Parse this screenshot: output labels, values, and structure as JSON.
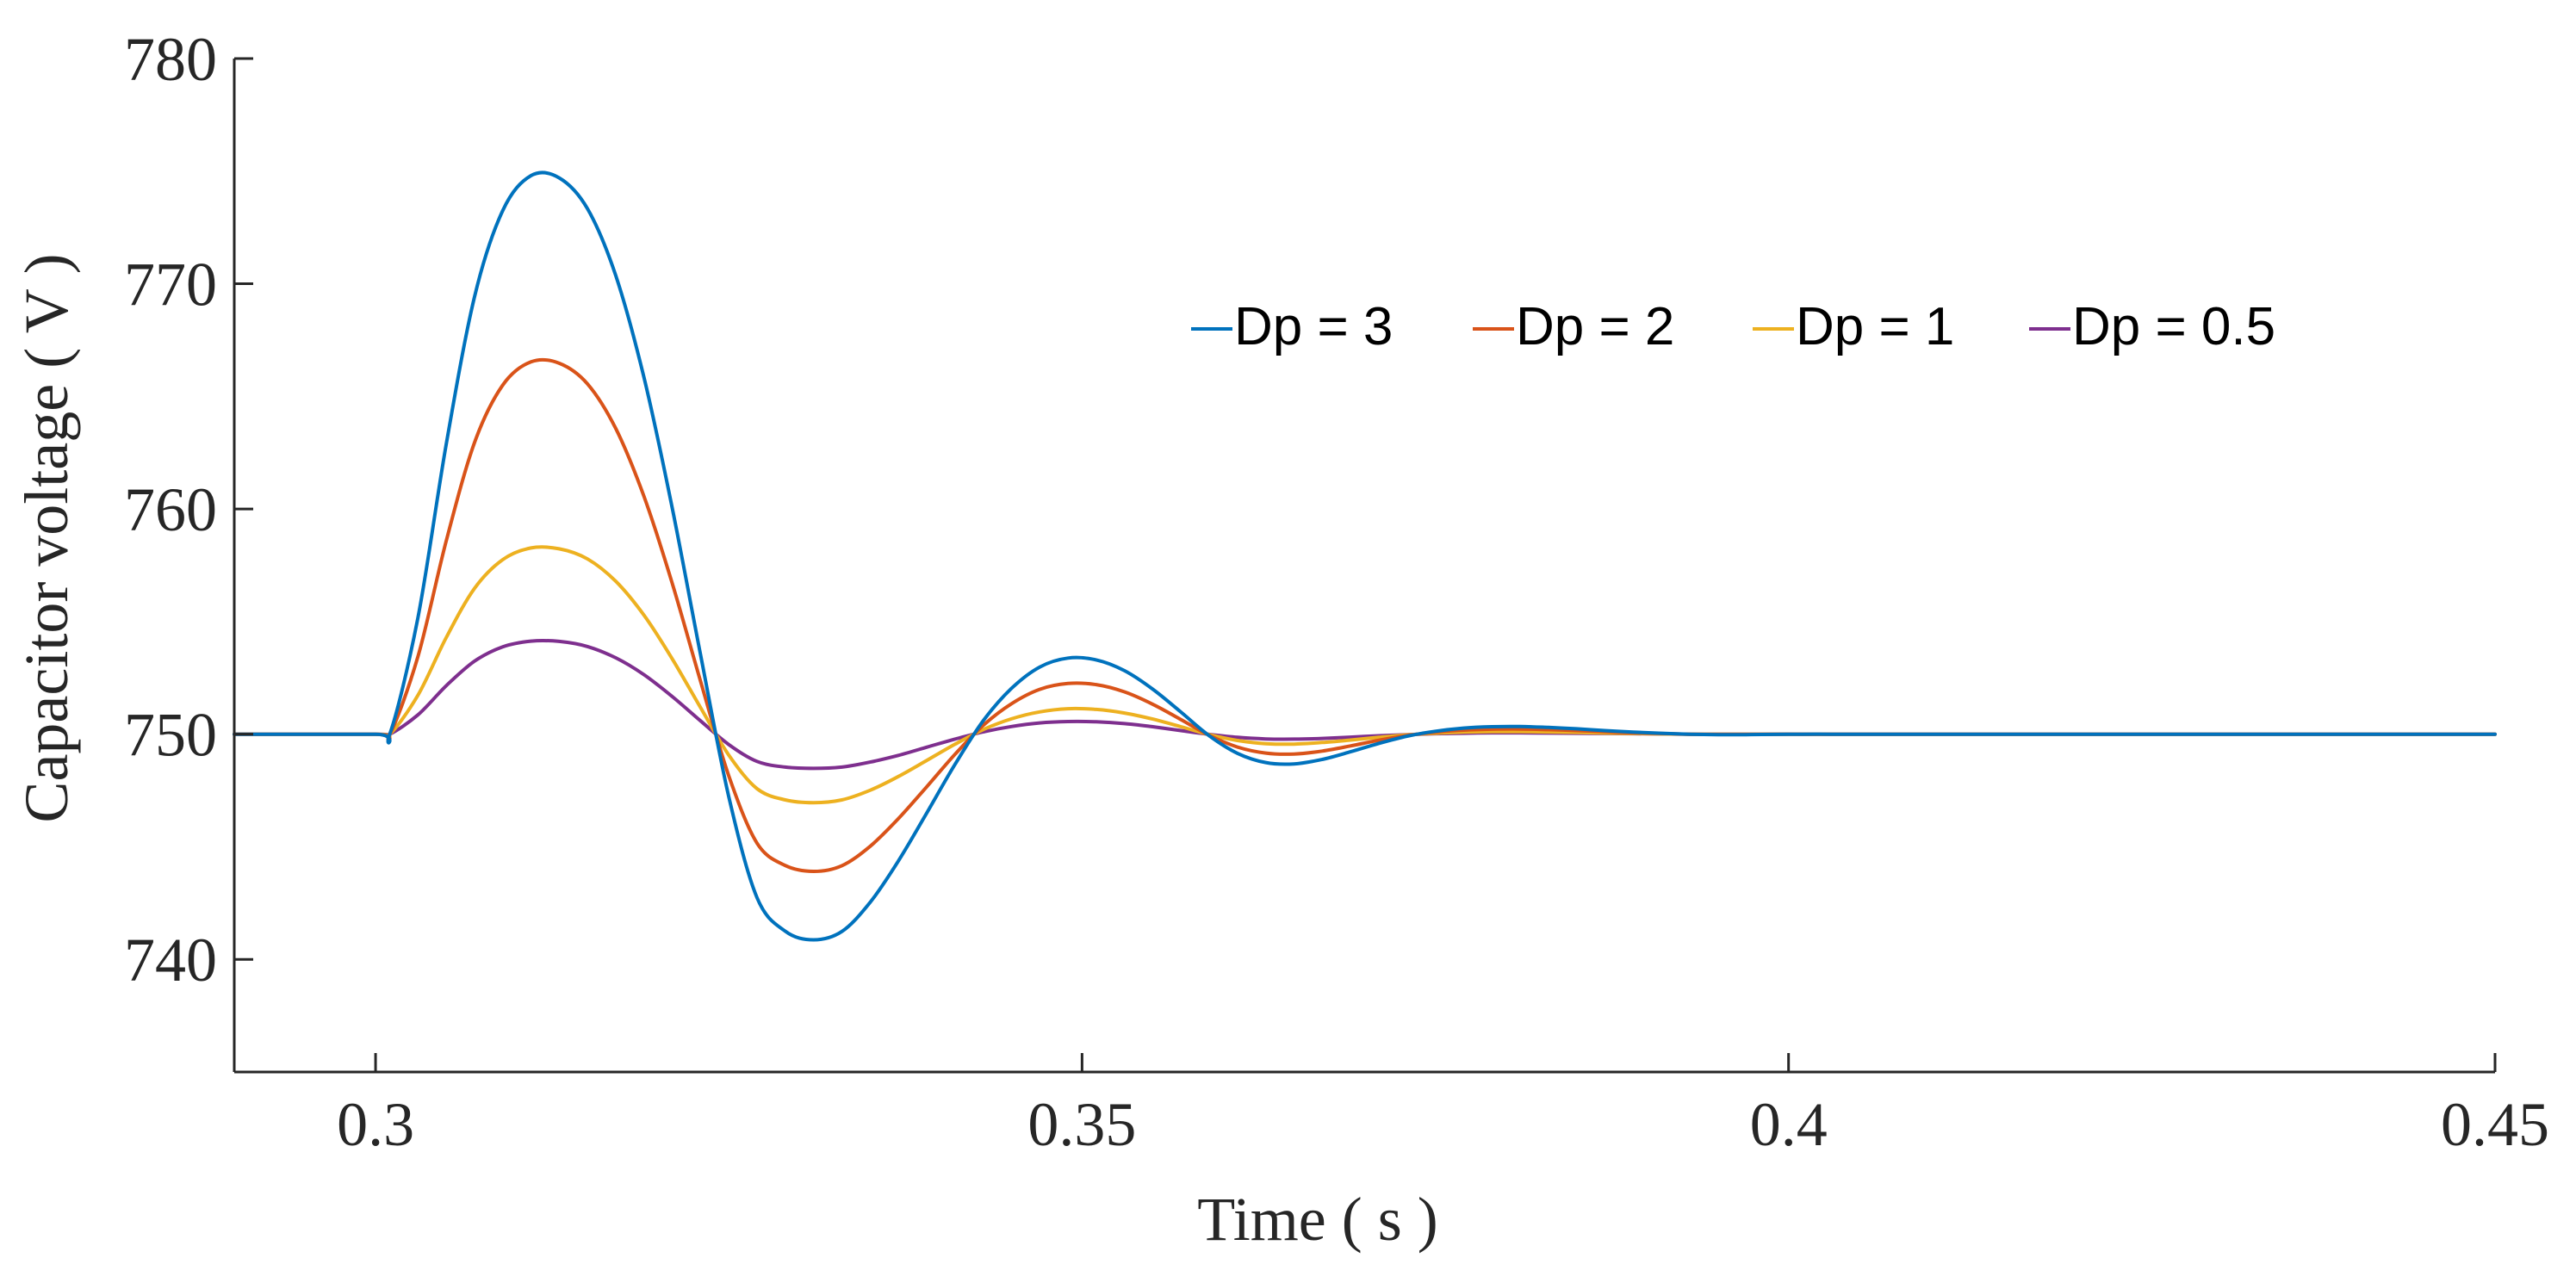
{
  "chart_data": {
    "type": "line",
    "title": "",
    "xlabel": "Time ( s )",
    "ylabel": "Capacitor voltage ( V )",
    "xlim": [
      0.29,
      0.45
    ],
    "ylim": [
      735,
      780
    ],
    "xticks": [
      0.3,
      0.35,
      0.4,
      0.45
    ],
    "xtick_labels": [
      "0.3",
      "0.35",
      "0.4",
      "0.45"
    ],
    "yticks": [
      740,
      750,
      760,
      770,
      780
    ],
    "ytick_labels": [
      "740",
      "750",
      "760",
      "770",
      "780"
    ],
    "grid": false,
    "legend_position": "top-right",
    "x": [
      0.29,
      0.3,
      0.301,
      0.303,
      0.305,
      0.307,
      0.309,
      0.311,
      0.313,
      0.315,
      0.317,
      0.319,
      0.321,
      0.323,
      0.325,
      0.327,
      0.329,
      0.331,
      0.333,
      0.335,
      0.337,
      0.339,
      0.341,
      0.343,
      0.345,
      0.347,
      0.349,
      0.351,
      0.353,
      0.355,
      0.357,
      0.359,
      0.361,
      0.363,
      0.365,
      0.367,
      0.369,
      0.371,
      0.373,
      0.375,
      0.377,
      0.379,
      0.381,
      0.383,
      0.385,
      0.387,
      0.389,
      0.391,
      0.393,
      0.395,
      0.397,
      0.399,
      0.401,
      0.403,
      0.405,
      0.407,
      0.409,
      0.411,
      0.413,
      0.415,
      0.417,
      0.419,
      0.421,
      0.423,
      0.425,
      0.427,
      0.429,
      0.431,
      0.433,
      0.435,
      0.437,
      0.439,
      0.441,
      0.443,
      0.445,
      0.447,
      0.449,
      0.45
    ],
    "series": [
      {
        "name": "Dp = 3",
        "color": "#0072BD",
        "values": [
          750,
          750,
          750,
          755.18,
          762.87,
          769.41,
          773.25,
          774.8,
          774.7,
          773.33,
          770.36,
          765.83,
          760.03,
          753.53,
          747.22,
          742.74,
          741.25,
          740.87,
          741.24,
          742.53,
          744.37,
          746.49,
          748.65,
          750.59,
          752.03,
          752.98,
          753.38,
          753.3,
          752.82,
          752.0,
          750.98,
          749.93,
          749.15,
          748.74,
          748.68,
          748.88,
          749.22,
          749.59,
          749.91,
          750.13,
          750.27,
          750.33,
          750.34,
          750.3,
          750.24,
          750.16,
          750.09,
          750.04,
          750.0,
          749.98,
          749.98,
          749.99,
          750.0,
          750.0,
          750,
          750,
          750,
          750,
          750,
          750,
          750,
          750,
          750,
          750,
          750,
          750,
          750,
          750,
          750,
          750,
          750,
          750,
          750,
          750,
          750,
          750,
          750,
          750
        ]
      },
      {
        "name": "Dp = 2",
        "color": "#D95319",
        "values": [
          750,
          750,
          750,
          753.45,
          758.58,
          762.94,
          765.5,
          766.53,
          766.47,
          765.55,
          763.57,
          760.55,
          756.69,
          752.35,
          748.15,
          745.16,
          744.17,
          743.91,
          744.16,
          745.02,
          746.25,
          747.66,
          749.1,
          750.39,
          751.35,
          751.99,
          752.25,
          752.2,
          751.88,
          751.33,
          750.65,
          749.95,
          749.43,
          749.16,
          749.12,
          749.25,
          749.48,
          749.73,
          749.94,
          750.09,
          750.18,
          750.22,
          750.23,
          750.2,
          750.16,
          750.11,
          750.06,
          750.03,
          750.0,
          749.99,
          749.99,
          750.0,
          750,
          750,
          750,
          750,
          750,
          750,
          750,
          750,
          750,
          750,
          750,
          750,
          750,
          750,
          750,
          750,
          750,
          750,
          750,
          750,
          750,
          750,
          750,
          750,
          750,
          750
        ]
      },
      {
        "name": "Dp = 1",
        "color": "#EDB120",
        "values": [
          750,
          750,
          750,
          751.73,
          754.29,
          756.47,
          757.75,
          758.27,
          758.23,
          757.78,
          756.79,
          755.28,
          753.34,
          751.18,
          749.07,
          747.58,
          747.08,
          746.96,
          747.08,
          747.51,
          748.12,
          748.83,
          749.55,
          750.2,
          750.68,
          750.99,
          751.13,
          751.1,
          750.94,
          750.67,
          750.33,
          749.98,
          749.72,
          749.58,
          749.56,
          749.63,
          749.74,
          749.86,
          749.97,
          750.04,
          750.09,
          750.11,
          750.11,
          750.1,
          750.08,
          750.05,
          750.03,
          750.01,
          750.0,
          750.0,
          750.0,
          750.0,
          750,
          750,
          750,
          750,
          750,
          750,
          750,
          750,
          750,
          750,
          750,
          750,
          750,
          750,
          750,
          750,
          750,
          750,
          750,
          750,
          750,
          750,
          750,
          750,
          750,
          750
        ]
      },
      {
        "name": "Dp = 0.5",
        "color": "#7E2F8E",
        "values": [
          750,
          750,
          750,
          750.86,
          752.15,
          753.24,
          753.88,
          754.13,
          754.12,
          753.89,
          753.39,
          752.64,
          751.67,
          750.59,
          749.54,
          748.79,
          748.54,
          748.48,
          748.54,
          748.76,
          749.06,
          749.42,
          749.78,
          750.1,
          750.34,
          750.5,
          750.56,
          750.55,
          750.47,
          750.33,
          750.16,
          749.99,
          749.86,
          749.79,
          749.78,
          749.81,
          749.87,
          749.93,
          749.98,
          750.02,
          750.04,
          750.06,
          750.06,
          750.05,
          750.04,
          750.03,
          750.02,
          750.01,
          750.0,
          750.0,
          750.0,
          750.0,
          750,
          750,
          750,
          750,
          750,
          750,
          750,
          750,
          750,
          750,
          750,
          750,
          750,
          750,
          750,
          750,
          750,
          750,
          750,
          750,
          750,
          750,
          750,
          750,
          750,
          750
        ]
      }
    ]
  }
}
